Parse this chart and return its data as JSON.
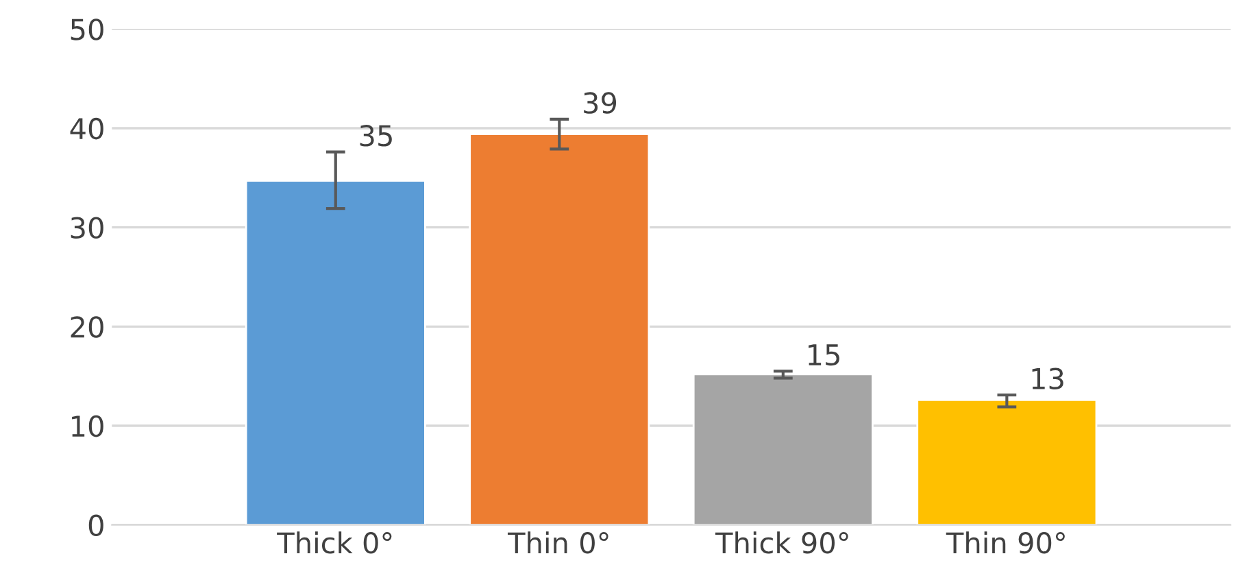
{
  "chart_data": {
    "type": "bar",
    "categories": [
      "Thick 0°",
      "Thin 0°",
      "Thick 90°",
      "Thin 90°"
    ],
    "values": [
      34.7,
      39.4,
      15.2,
      12.6
    ],
    "colors": [
      "#5b9bd5",
      "#ed7d31",
      "#a5a5a5",
      "#ffc000"
    ],
    "errors": [
      [
        31.9,
        37.6
      ],
      [
        37.9,
        40.9
      ],
      [
        14.8,
        15.5
      ],
      [
        11.9,
        13.1
      ]
    ],
    "value_labels": [
      "35",
      "39",
      "15",
      "13"
    ],
    "ylim": [
      0,
      50
    ],
    "yticks": [
      0,
      10,
      20,
      30,
      40,
      50
    ],
    "grid": "y",
    "legend": false
  }
}
